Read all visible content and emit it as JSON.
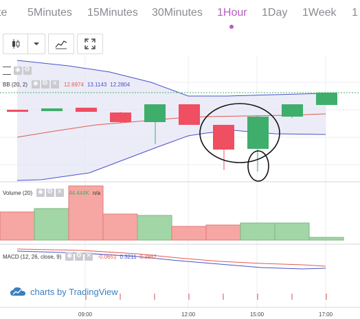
{
  "tabs": [
    "te",
    "5Minutes",
    "15Minutes",
    "30Minutes",
    "1Hour",
    "1Day",
    "1Week",
    "1"
  ],
  "active_tab": "1Hour",
  "toolbar": {
    "buttons": [
      "candles-icon",
      "dropdown-arrow-icon",
      "indicators-icon",
      "fullscreen-icon"
    ]
  },
  "bb": {
    "label": "BB (20, 2)",
    "v1": "12.6974",
    "v2": "13.1143",
    "v3": "12.2804"
  },
  "volume": {
    "label": "Volume (20)",
    "value": "44.444K",
    "extra": "n/a"
  },
  "macd": {
    "label": "MACD (12, 26, close, 9)",
    "v1": "-0.0651",
    "v2": "0.3211",
    "v3": "0.3862"
  },
  "watermark": {
    "text": "charts by TradingView"
  },
  "time_labels": [
    "09:00",
    "12:00",
    "15:00",
    "17:00"
  ],
  "colors": {
    "up": "#3fae6c",
    "down": "#ef4f61",
    "bb": "#4a4fc8",
    "bb_fill": "#e6e7f5",
    "ma": "#e05a4e",
    "tab_active": "#b75cc4",
    "tv_blue": "#3a7fc1"
  }
}
